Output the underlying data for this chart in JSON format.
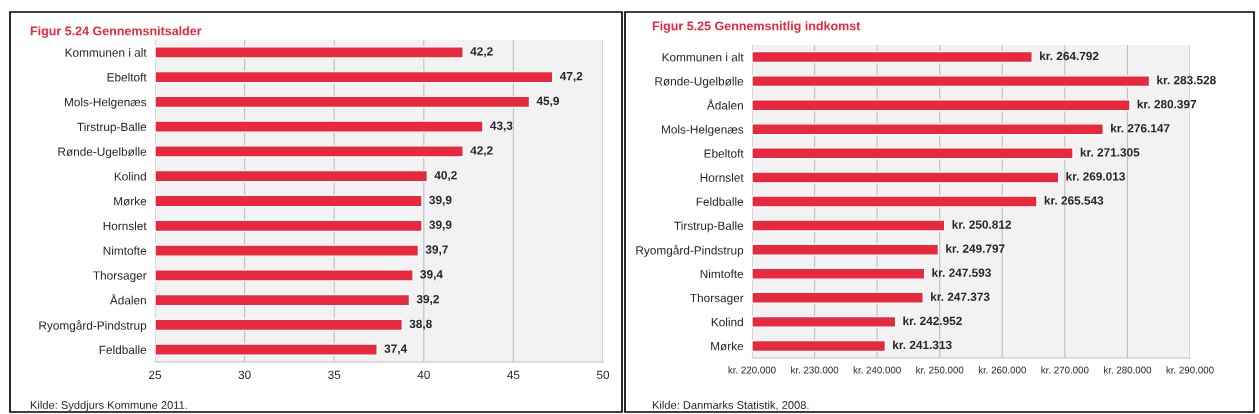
{
  "chart_data": [
    {
      "type": "bar",
      "orientation": "horizontal",
      "title": "Figur 5.24 Gennemsnitsalder",
      "categories": [
        "Kommunen i alt",
        "Ebeltoft",
        "Mols-Helgenæs",
        "Tirstrup-Balle",
        "Rønde-Ugelbølle",
        "Kolind",
        "Mørke",
        "Hornslet",
        "Nimtofte",
        "Thorsager",
        "Ådalen",
        "Ryomgård-Pindstrup",
        "Feldballe"
      ],
      "values": [
        42.2,
        47.2,
        45.9,
        43.3,
        42.2,
        40.2,
        39.9,
        39.9,
        39.7,
        39.4,
        39.2,
        38.8,
        37.4
      ],
      "value_labels": [
        "42,2",
        "47,2",
        "45,9",
        "43,3",
        "42,2",
        "40,2",
        "39,9",
        "39,9",
        "39,7",
        "39,4",
        "39,2",
        "38,8",
        "37,4"
      ],
      "color": "#e8283c",
      "xlim": [
        25,
        50
      ],
      "xticks": [
        25,
        30,
        35,
        40,
        45,
        50
      ],
      "grid": "x",
      "annotations": [
        "Kilde: Syddjurs Kommune 2011."
      ]
    },
    {
      "type": "bar",
      "orientation": "horizontal",
      "title": "Figur 5.25 Gennemsnitlig indkomst",
      "categories": [
        "Kommunen i alt",
        "Rønde-Ugelbølle",
        "Ådalen",
        "Mols-Helgenæs",
        "Ebeltoft",
        "Hornslet",
        "Feldballe",
        "Tirstrup-Balle",
        "Ryomgård-Pindstrup",
        "Nimtofte",
        "Thorsager",
        "Kolind",
        "Mørke"
      ],
      "values": [
        264792,
        283528,
        280397,
        276147,
        271305,
        269013,
        265543,
        250812,
        249797,
        247593,
        247373,
        242952,
        241313
      ],
      "value_labels": [
        "kr. 264.792",
        "kr. 283.528",
        "kr. 280.397",
        "kr. 276.147",
        "kr. 271.305",
        "kr. 269.013",
        "kr. 265.543",
        "kr. 250.812",
        "kr. 249.797",
        "kr. 247.593",
        "kr. 247.373",
        "kr. 242.952",
        "kr. 241.313"
      ],
      "color": "#e8283c",
      "xlim": [
        220000,
        290000
      ],
      "xticks": [
        {
          "value": 220000,
          "label": "kr. 220.000"
        },
        {
          "value": 230000,
          "label": "kr. 230.000"
        },
        {
          "value": 240000,
          "label": "kr. 240.000"
        },
        {
          "value": 250000,
          "label": "kr. 250.000"
        },
        {
          "value": 260000,
          "label": "kr. 260.000"
        },
        {
          "value": 270000,
          "label": "kr. 270.000"
        },
        {
          "value": 280000,
          "label": "kr. 280.000"
        },
        {
          "value": 290000,
          "label": "kr. 290.000"
        }
      ],
      "grid": "x",
      "annotations": [
        "Kilde: Danmarks Statistik, 2008."
      ]
    }
  ]
}
